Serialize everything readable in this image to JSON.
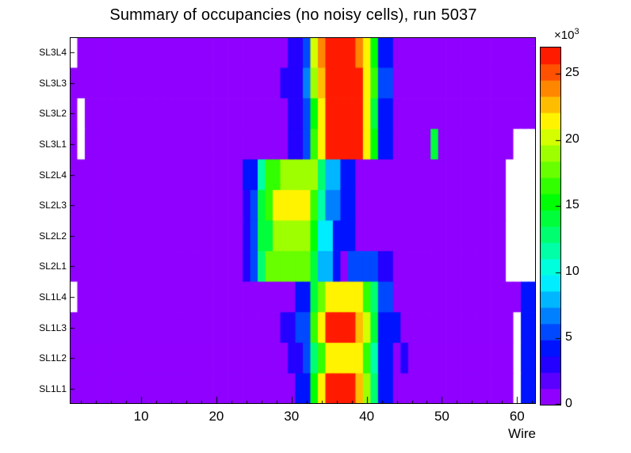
{
  "page": {
    "background": "#ffffff"
  },
  "palette": {
    "type": "root-rainbow",
    "hue_max": 280,
    "bands": 22,
    "empty_color": "#ffffff"
  },
  "chart_data": {
    "type": "heatmap",
    "title": "Summary of occupancies (no noisy cells), run 5037",
    "xlabel": "Wire",
    "ylabel": "",
    "x_ticks": [
      10,
      20,
      30,
      40,
      50,
      60
    ],
    "x_minor_tick_step": 2,
    "n_wires": 62,
    "x_range": [
      0.5,
      62.5
    ],
    "values_unit": "counts x 10^3",
    "zmax_thousands": 27,
    "background_value_thousands": 1,
    "empty_bin_value": 0,
    "y_row_labels_top_to_bottom": [
      "SL3L4",
      "SL3L3",
      "SL3L2",
      "SL3L1",
      "SL2L4",
      "SL2L3",
      "SL2L2",
      "SL2L1",
      "SL1L4",
      "SL1L3",
      "SL1L2",
      "SL1L1"
    ],
    "rows": [
      {
        "label": "SL3L4",
        "background": 1,
        "runs": [
          [
            1,
            1,
            0
          ],
          [
            30,
            31,
            3
          ],
          [
            32,
            32,
            6
          ],
          [
            33,
            33,
            20
          ],
          [
            34,
            34,
            24
          ],
          [
            35,
            38,
            27
          ],
          [
            39,
            39,
            24
          ],
          [
            40,
            40,
            21
          ],
          [
            41,
            41,
            15
          ],
          [
            42,
            43,
            4
          ]
        ]
      },
      {
        "label": "SL3L3",
        "background": 1,
        "runs": [
          [
            29,
            31,
            3
          ],
          [
            32,
            32,
            7
          ],
          [
            33,
            33,
            19
          ],
          [
            34,
            34,
            23
          ],
          [
            35,
            39,
            27
          ],
          [
            40,
            40,
            22
          ],
          [
            41,
            41,
            16
          ],
          [
            42,
            43,
            5
          ]
        ]
      },
      {
        "label": "SL3L2",
        "background": 1,
        "runs": [
          [
            2,
            2,
            0
          ],
          [
            30,
            31,
            3
          ],
          [
            32,
            32,
            6
          ],
          [
            33,
            33,
            15
          ],
          [
            34,
            34,
            21
          ],
          [
            35,
            39,
            26
          ],
          [
            40,
            40,
            22
          ],
          [
            41,
            41,
            14
          ],
          [
            42,
            43,
            4
          ]
        ]
      },
      {
        "label": "SL3L1",
        "background": 1,
        "runs": [
          [
            2,
            2,
            0
          ],
          [
            30,
            31,
            3
          ],
          [
            32,
            32,
            6
          ],
          [
            33,
            33,
            16
          ],
          [
            34,
            34,
            22
          ],
          [
            35,
            39,
            27
          ],
          [
            40,
            40,
            22
          ],
          [
            41,
            41,
            15
          ],
          [
            42,
            43,
            4
          ],
          [
            49,
            49,
            14
          ],
          [
            60,
            62,
            0
          ]
        ]
      },
      {
        "label": "SL2L4",
        "background": 1,
        "runs": [
          [
            24,
            25,
            4
          ],
          [
            26,
            26,
            12
          ],
          [
            27,
            28,
            16
          ],
          [
            29,
            33,
            19
          ],
          [
            34,
            34,
            13
          ],
          [
            35,
            36,
            8
          ],
          [
            37,
            38,
            4
          ],
          [
            59,
            62,
            0
          ]
        ]
      },
      {
        "label": "SL2L3",
        "background": 1,
        "runs": [
          [
            24,
            24,
            3
          ],
          [
            25,
            25,
            5
          ],
          [
            26,
            26,
            14
          ],
          [
            27,
            27,
            17
          ],
          [
            28,
            32,
            21
          ],
          [
            33,
            33,
            17
          ],
          [
            34,
            34,
            12
          ],
          [
            35,
            36,
            7
          ],
          [
            37,
            38,
            4
          ],
          [
            59,
            62,
            0
          ]
        ]
      },
      {
        "label": "SL2L2",
        "background": 1,
        "runs": [
          [
            24,
            24,
            3
          ],
          [
            25,
            25,
            5
          ],
          [
            26,
            27,
            14
          ],
          [
            28,
            32,
            19
          ],
          [
            33,
            33,
            15
          ],
          [
            34,
            35,
            9
          ],
          [
            36,
            38,
            4
          ],
          [
            59,
            62,
            0
          ]
        ]
      },
      {
        "label": "SL2L1",
        "background": 1,
        "runs": [
          [
            24,
            24,
            3
          ],
          [
            25,
            25,
            5
          ],
          [
            26,
            26,
            13
          ],
          [
            27,
            32,
            18
          ],
          [
            33,
            33,
            14
          ],
          [
            34,
            35,
            8
          ],
          [
            36,
            36,
            4
          ],
          [
            38,
            41,
            5
          ],
          [
            42,
            43,
            3
          ],
          [
            59,
            62,
            0
          ]
        ]
      },
      {
        "label": "SL1L4",
        "background": 1,
        "runs": [
          [
            1,
            1,
            0
          ],
          [
            31,
            32,
            4
          ],
          [
            33,
            33,
            14
          ],
          [
            34,
            34,
            18
          ],
          [
            35,
            39,
            21
          ],
          [
            40,
            40,
            17
          ],
          [
            41,
            41,
            13
          ],
          [
            42,
            43,
            5
          ],
          [
            61,
            62,
            4
          ]
        ]
      },
      {
        "label": "SL1L3",
        "background": 1,
        "runs": [
          [
            29,
            30,
            3
          ],
          [
            31,
            32,
            5
          ],
          [
            33,
            33,
            16
          ],
          [
            34,
            34,
            22
          ],
          [
            35,
            38,
            26
          ],
          [
            39,
            39,
            23
          ],
          [
            40,
            40,
            20
          ],
          [
            41,
            41,
            14
          ],
          [
            42,
            44,
            4
          ],
          [
            60,
            60,
            0
          ],
          [
            61,
            62,
            4
          ]
        ]
      },
      {
        "label": "SL1L2",
        "background": 1,
        "runs": [
          [
            30,
            31,
            3
          ],
          [
            32,
            32,
            5
          ],
          [
            33,
            33,
            13
          ],
          [
            34,
            34,
            17
          ],
          [
            35,
            39,
            21
          ],
          [
            40,
            40,
            16
          ],
          [
            41,
            41,
            12
          ],
          [
            42,
            43,
            4
          ],
          [
            45,
            45,
            3
          ],
          [
            60,
            60,
            0
          ],
          [
            61,
            62,
            4
          ]
        ]
      },
      {
        "label": "SL1L1",
        "background": 1,
        "runs": [
          [
            31,
            32,
            4
          ],
          [
            33,
            33,
            15
          ],
          [
            34,
            34,
            21
          ],
          [
            35,
            38,
            26
          ],
          [
            39,
            39,
            23
          ],
          [
            40,
            40,
            19
          ],
          [
            41,
            41,
            13
          ],
          [
            42,
            43,
            4
          ],
          [
            60,
            60,
            0
          ],
          [
            61,
            62,
            4
          ]
        ]
      }
    ],
    "colorbar": {
      "position": "right",
      "ticks": [
        0,
        5,
        10,
        15,
        20,
        25
      ],
      "exp_base": "×10",
      "exp_sup": "3"
    }
  }
}
